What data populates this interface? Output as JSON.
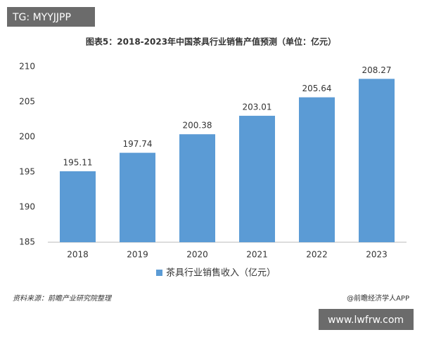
{
  "tag": "TG: MYYJJPP",
  "source": "资料来源：前瞻产业研究院整理",
  "credit": "@前瞻经济学人APP",
  "site": "www.lwfrw.com",
  "chart_data": {
    "type": "bar",
    "title": "图表5：2018-2023年中国茶具行业销售产值预测（单位：亿元）",
    "categories": [
      "2018",
      "2019",
      "2020",
      "2021",
      "2022",
      "2023"
    ],
    "series": [
      {
        "name": "茶具行业销售收入（亿元）",
        "color": "#5b9bd5",
        "values": [
          195.11,
          197.74,
          200.38,
          203.01,
          205.64,
          208.27
        ]
      }
    ],
    "ylim": [
      185,
      210
    ],
    "yticks": [
      185,
      190,
      195,
      200,
      205,
      210
    ],
    "grid": false,
    "legend": "bottom"
  }
}
